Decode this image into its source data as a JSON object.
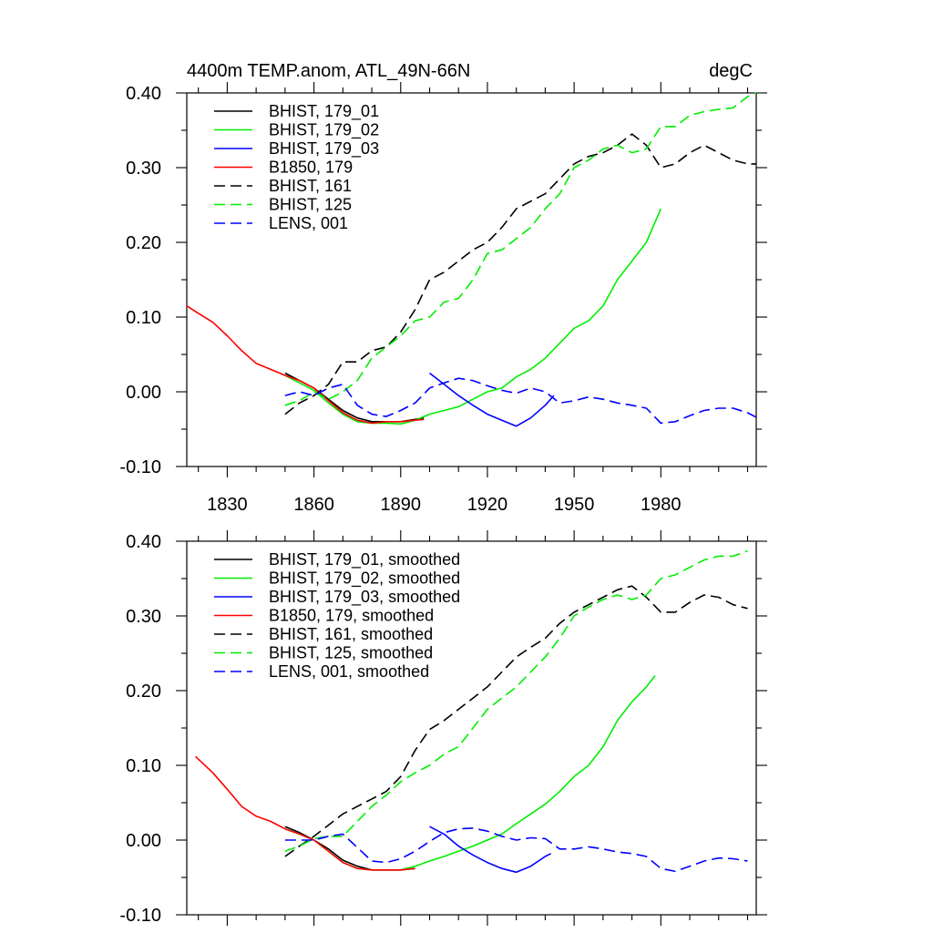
{
  "chart_data": [
    {
      "type": "line",
      "title_left": "4400m TEMP.anom, ATL_49N-66N",
      "title_right": "degC",
      "xlabel": "",
      "ylabel": "",
      "xlim": [
        1816,
        2013
      ],
      "ylim": [
        -0.1,
        0.4
      ],
      "x_ticks": [
        1830,
        1860,
        1890,
        1920,
        1950,
        1980
      ],
      "y_ticks": [
        -0.1,
        0.0,
        0.1,
        0.2,
        0.3,
        0.4
      ],
      "y_tick_labels": [
        "-0.10",
        "0.00",
        "0.10",
        "0.20",
        "0.30",
        "0.40"
      ],
      "show_x_tick_labels": true,
      "grid": false,
      "legend_position": "top-left",
      "series": [
        {
          "name": "BHIST, 179_01",
          "color": "#000000",
          "dash": "solid",
          "x": [
            1850,
            1855,
            1860,
            1865,
            1870,
            1875,
            1880,
            1885,
            1890,
            1895,
            1898
          ],
          "y": [
            0.025,
            0.015,
            0.005,
            -0.01,
            -0.025,
            -0.035,
            -0.04,
            -0.04,
            -0.04,
            -0.037,
            -0.035
          ]
        },
        {
          "name": "BHIST, 179_02",
          "color": "#00ee00",
          "dash": "solid",
          "x": [
            1850,
            1855,
            1860,
            1865,
            1870,
            1875,
            1880,
            1885,
            1890,
            1895,
            1900,
            1905,
            1910,
            1915,
            1920,
            1925,
            1930,
            1935,
            1940,
            1945,
            1950,
            1955,
            1960,
            1965,
            1970,
            1975,
            1980
          ],
          "y": [
            0.022,
            0.012,
            0.002,
            -0.015,
            -0.03,
            -0.04,
            -0.042,
            -0.042,
            -0.043,
            -0.038,
            -0.03,
            -0.025,
            -0.02,
            -0.01,
            0.0,
            0.005,
            0.02,
            0.03,
            0.045,
            0.065,
            0.085,
            0.095,
            0.115,
            0.15,
            0.175,
            0.2,
            0.245
          ]
        },
        {
          "name": "BHIST, 179_03",
          "color": "#0000ff",
          "dash": "solid",
          "x": [
            1900,
            1905,
            1910,
            1915,
            1920,
            1925,
            1930,
            1935,
            1940,
            1943
          ],
          "y": [
            0.025,
            0.01,
            -0.005,
            -0.018,
            -0.03,
            -0.038,
            -0.046,
            -0.035,
            -0.018,
            -0.005
          ]
        },
        {
          "name": "B1850, 179",
          "color": "#ff0000",
          "dash": "solid",
          "x": [
            1816,
            1820,
            1825,
            1830,
            1835,
            1840,
            1845,
            1850,
            1855,
            1860,
            1865,
            1870,
            1875,
            1880,
            1885,
            1890,
            1895,
            1898
          ],
          "y": [
            0.115,
            0.105,
            0.093,
            0.075,
            0.055,
            0.038,
            0.03,
            0.022,
            0.015,
            0.005,
            -0.012,
            -0.028,
            -0.038,
            -0.042,
            -0.04,
            -0.04,
            -0.038,
            -0.037
          ]
        },
        {
          "name": "BHIST, 161",
          "color": "#000000",
          "dash": "dashed",
          "x": [
            1850,
            1855,
            1860,
            1865,
            1870,
            1875,
            1880,
            1885,
            1890,
            1895,
            1900,
            1905,
            1910,
            1915,
            1920,
            1925,
            1930,
            1935,
            1940,
            1945,
            1950,
            1955,
            1960,
            1965,
            1970,
            1975,
            1980,
            1985,
            1990,
            1995,
            2000,
            2005,
            2010,
            2013
          ],
          "y": [
            -0.03,
            -0.015,
            -0.005,
            0.01,
            0.04,
            0.04,
            0.055,
            0.06,
            0.08,
            0.11,
            0.15,
            0.16,
            0.175,
            0.19,
            0.2,
            0.22,
            0.245,
            0.255,
            0.265,
            0.285,
            0.305,
            0.315,
            0.32,
            0.33,
            0.345,
            0.33,
            0.3,
            0.305,
            0.32,
            0.33,
            0.32,
            0.31,
            0.305,
            0.305
          ]
        },
        {
          "name": "BHIST, 125",
          "color": "#00ee00",
          "dash": "dashed",
          "x": [
            1850,
            1855,
            1860,
            1865,
            1870,
            1875,
            1880,
            1885,
            1890,
            1895,
            1900,
            1905,
            1910,
            1915,
            1920,
            1925,
            1930,
            1935,
            1940,
            1945,
            1950,
            1955,
            1960,
            1965,
            1970,
            1975,
            1980,
            1985,
            1990,
            1995,
            2000,
            2005,
            2010,
            2013
          ],
          "y": [
            -0.018,
            -0.012,
            0.0,
            -0.01,
            0.0,
            0.015,
            0.045,
            0.06,
            0.075,
            0.095,
            0.1,
            0.12,
            0.125,
            0.15,
            0.185,
            0.19,
            0.205,
            0.22,
            0.245,
            0.265,
            0.3,
            0.31,
            0.325,
            0.33,
            0.32,
            0.325,
            0.355,
            0.355,
            0.37,
            0.375,
            0.378,
            0.38,
            0.395,
            0.4
          ]
        },
        {
          "name": "LENS, 001",
          "color": "#0000ff",
          "dash": "dashed",
          "x": [
            1850,
            1855,
            1860,
            1865,
            1870,
            1875,
            1880,
            1885,
            1890,
            1895,
            1900,
            1905,
            1910,
            1915,
            1920,
            1925,
            1930,
            1935,
            1940,
            1945,
            1950,
            1955,
            1960,
            1965,
            1970,
            1975,
            1980,
            1985,
            1990,
            1995,
            2000,
            2005,
            2010,
            2013
          ],
          "y": [
            -0.005,
            0.0,
            -0.005,
            0.005,
            0.01,
            -0.018,
            -0.03,
            -0.033,
            -0.025,
            -0.015,
            0.005,
            0.012,
            0.018,
            0.015,
            0.008,
            0.002,
            -0.002,
            0.005,
            0.0,
            -0.015,
            -0.012,
            -0.007,
            -0.01,
            -0.015,
            -0.018,
            -0.022,
            -0.042,
            -0.04,
            -0.032,
            -0.025,
            -0.022,
            -0.022,
            -0.028,
            -0.034
          ]
        }
      ]
    },
    {
      "type": "line",
      "title_left": "",
      "title_right": "",
      "xlabel": "",
      "ylabel": "",
      "xlim": [
        1816,
        2013
      ],
      "ylim": [
        -0.1,
        0.4
      ],
      "x_ticks": [
        1830,
        1860,
        1890,
        1920,
        1950,
        1980
      ],
      "y_ticks": [
        -0.1,
        0.0,
        0.1,
        0.2,
        0.3,
        0.4
      ],
      "y_tick_labels": [
        "-0.10",
        "0.00",
        "0.10",
        "0.20",
        "0.30",
        "0.40"
      ],
      "show_x_tick_labels": false,
      "grid": false,
      "legend_position": "top-left",
      "series": [
        {
          "name": "BHIST, 179_01, smoothed",
          "color": "#000000",
          "dash": "solid",
          "x": [
            1850,
            1855,
            1860,
            1865,
            1870,
            1875,
            1880,
            1885,
            1890,
            1895
          ],
          "y": [
            0.018,
            0.01,
            0.0,
            -0.012,
            -0.027,
            -0.035,
            -0.04,
            -0.04,
            -0.04,
            -0.038
          ]
        },
        {
          "name": "BHIST, 179_02, smoothed",
          "color": "#00ee00",
          "dash": "solid",
          "x": [
            1850,
            1855,
            1860,
            1865,
            1870,
            1875,
            1880,
            1885,
            1890,
            1895,
            1900,
            1905,
            1910,
            1915,
            1920,
            1925,
            1930,
            1935,
            1940,
            1945,
            1950,
            1955,
            1960,
            1965,
            1970,
            1975,
            1978
          ],
          "y": [
            0.015,
            0.008,
            0.0,
            -0.015,
            -0.03,
            -0.038,
            -0.04,
            -0.04,
            -0.04,
            -0.035,
            -0.028,
            -0.022,
            -0.015,
            -0.008,
            0.0,
            0.008,
            0.022,
            0.035,
            0.048,
            0.065,
            0.085,
            0.1,
            0.125,
            0.16,
            0.185,
            0.205,
            0.22
          ]
        },
        {
          "name": "BHIST, 179_03, smoothed",
          "color": "#0000ff",
          "dash": "solid",
          "x": [
            1900,
            1905,
            1910,
            1915,
            1920,
            1925,
            1930,
            1935,
            1940,
            1942
          ],
          "y": [
            0.018,
            0.008,
            -0.008,
            -0.02,
            -0.03,
            -0.038,
            -0.043,
            -0.035,
            -0.022,
            -0.018
          ]
        },
        {
          "name": "B1850, 179, smoothed",
          "color": "#ff0000",
          "dash": "solid",
          "x": [
            1819,
            1825,
            1830,
            1835,
            1840,
            1845,
            1850,
            1855,
            1860,
            1865,
            1870,
            1875,
            1880,
            1885,
            1890,
            1895
          ],
          "y": [
            0.112,
            0.09,
            0.068,
            0.045,
            0.032,
            0.025,
            0.015,
            0.008,
            0.0,
            -0.015,
            -0.03,
            -0.038,
            -0.04,
            -0.04,
            -0.04,
            -0.038
          ]
        },
        {
          "name": "BHIST, 161, smoothed",
          "color": "#000000",
          "dash": "dashed",
          "x": [
            1850,
            1855,
            1860,
            1865,
            1870,
            1875,
            1880,
            1885,
            1890,
            1895,
            1900,
            1905,
            1910,
            1915,
            1920,
            1925,
            1930,
            1935,
            1940,
            1945,
            1950,
            1955,
            1960,
            1965,
            1970,
            1975,
            1980,
            1985,
            1990,
            1995,
            2000,
            2005,
            2010
          ],
          "y": [
            -0.022,
            -0.008,
            0.005,
            0.02,
            0.035,
            0.045,
            0.055,
            0.065,
            0.085,
            0.12,
            0.148,
            0.16,
            0.175,
            0.19,
            0.205,
            0.225,
            0.245,
            0.258,
            0.27,
            0.29,
            0.305,
            0.315,
            0.325,
            0.335,
            0.34,
            0.325,
            0.305,
            0.305,
            0.318,
            0.328,
            0.325,
            0.315,
            0.31
          ]
        },
        {
          "name": "BHIST, 125, smoothed",
          "color": "#00ee00",
          "dash": "dashed",
          "x": [
            1850,
            1855,
            1860,
            1865,
            1870,
            1875,
            1880,
            1885,
            1890,
            1895,
            1900,
            1905,
            1910,
            1915,
            1920,
            1925,
            1930,
            1935,
            1940,
            1945,
            1950,
            1955,
            1960,
            1965,
            1970,
            1975,
            1980,
            1985,
            1990,
            1995,
            2000,
            2005,
            2010
          ],
          "y": [
            -0.015,
            -0.008,
            0.002,
            0.005,
            0.005,
            0.025,
            0.045,
            0.06,
            0.078,
            0.09,
            0.1,
            0.115,
            0.125,
            0.15,
            0.175,
            0.19,
            0.205,
            0.225,
            0.245,
            0.27,
            0.3,
            0.312,
            0.322,
            0.328,
            0.322,
            0.328,
            0.35,
            0.355,
            0.365,
            0.375,
            0.38,
            0.38,
            0.387
          ]
        },
        {
          "name": "LENS, 001, smoothed",
          "color": "#0000ff",
          "dash": "dashed",
          "x": [
            1850,
            1855,
            1860,
            1865,
            1870,
            1875,
            1880,
            1885,
            1890,
            1895,
            1900,
            1905,
            1910,
            1915,
            1920,
            1925,
            1930,
            1935,
            1940,
            1945,
            1950,
            1955,
            1960,
            1965,
            1970,
            1975,
            1980,
            1985,
            1990,
            1995,
            2000,
            2005,
            2010
          ],
          "y": [
            0.0,
            0.0,
            0.0,
            0.005,
            0.008,
            -0.01,
            -0.028,
            -0.03,
            -0.025,
            -0.015,
            -0.002,
            0.01,
            0.015,
            0.016,
            0.012,
            0.005,
            0.0,
            0.003,
            0.002,
            -0.012,
            -0.012,
            -0.009,
            -0.012,
            -0.016,
            -0.018,
            -0.022,
            -0.038,
            -0.042,
            -0.035,
            -0.028,
            -0.024,
            -0.025,
            -0.028
          ]
        }
      ]
    }
  ]
}
